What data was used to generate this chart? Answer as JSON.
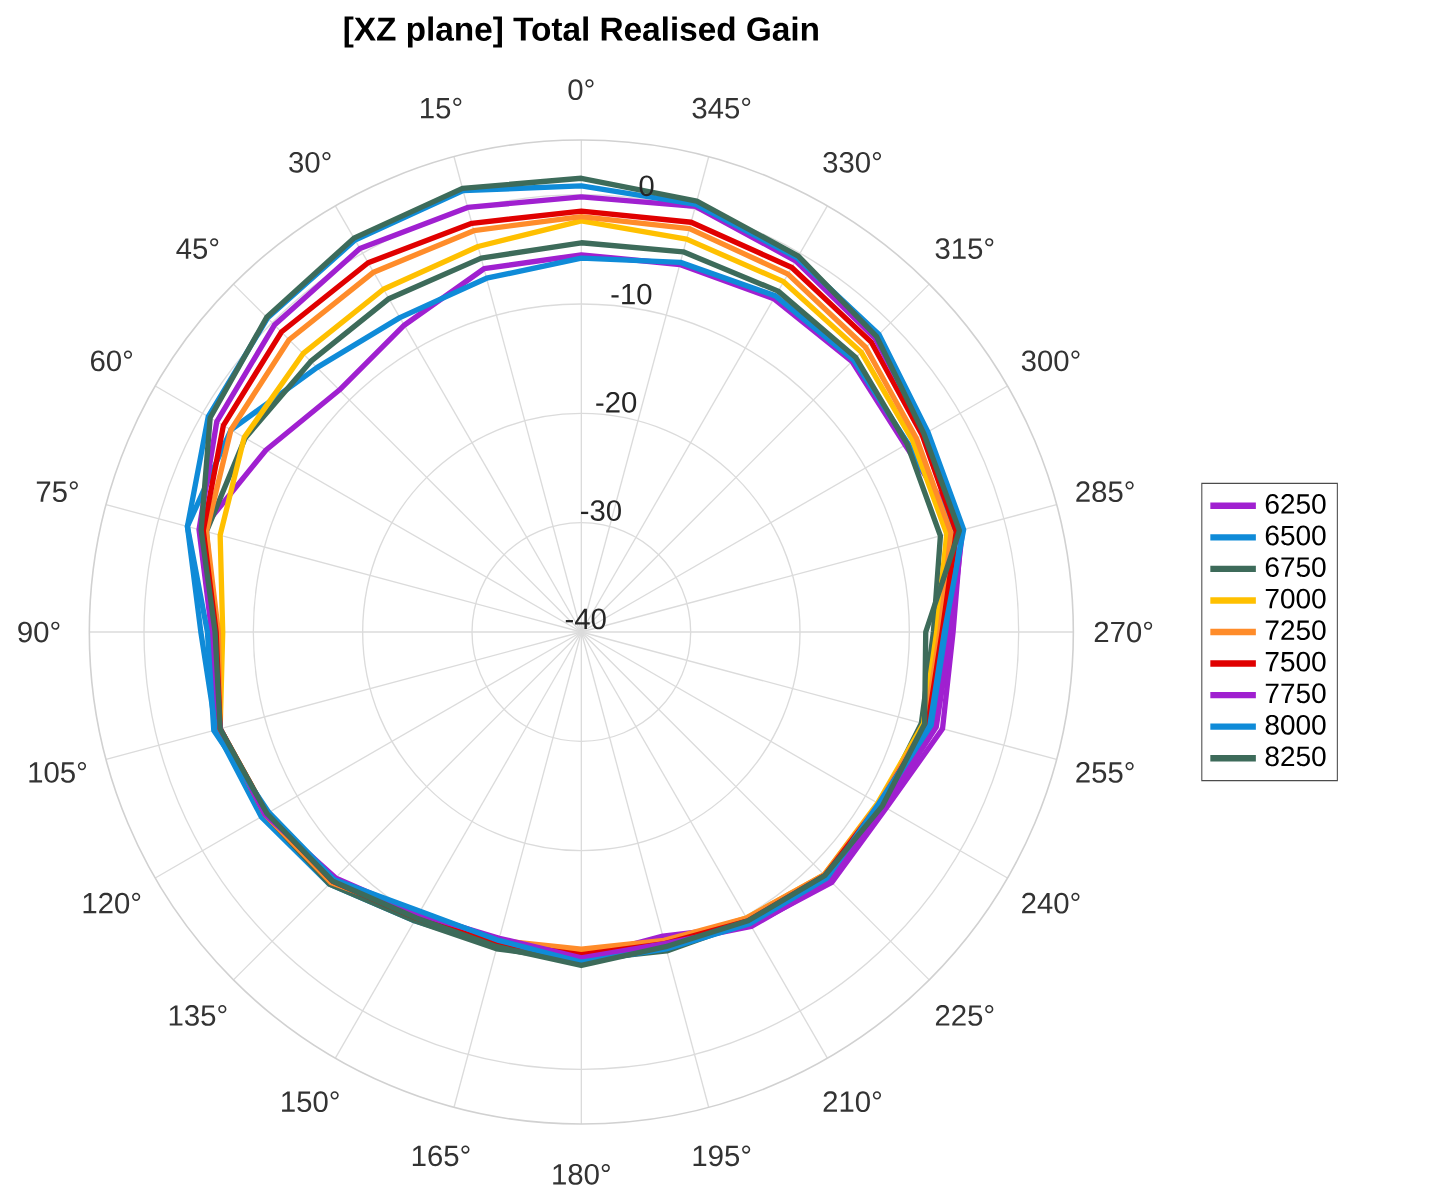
{
  "chart_data": {
    "type": "radar",
    "title": "[XZ plane] Total Realised Gain",
    "categories": [
      "0°",
      "345°",
      "330°",
      "315°",
      "300°",
      "285°",
      "270°",
      "255°",
      "240°",
      "225°",
      "210°",
      "195°",
      "180°",
      "165°",
      "150°",
      "135°",
      "120°",
      "105°",
      "90°",
      "75°",
      "60°",
      "45°",
      "30°",
      "15°"
    ],
    "ylim": [
      -40,
      5
    ],
    "yticks": [
      -40,
      -30,
      -20,
      -10,
      0
    ],
    "grid": true,
    "legend": "right",
    "line_style": "solid",
    "marker": "none",
    "series": [
      {
        "name": "6250",
        "color": "#a020d0",
        "values": [
          -5.5,
          -5.2,
          -4.8,
          -5.0,
          -5.8,
          -4.0,
          -6.0,
          -5.8,
          -7.8,
          -7.6,
          -9.0,
          -11.2,
          -10.2,
          -10.4,
          -9.8,
          -7.6,
          -6.4,
          -5.6,
          -6.2,
          -4.0,
          -6.7,
          -8.7,
          -7.6,
          -5.6
        ]
      },
      {
        "name": "6500",
        "color": "#0f8bd8",
        "values": [
          -5.8,
          -5.0,
          -4.5,
          -4.8,
          -5.5,
          -4.5,
          -6.5,
          -6.8,
          -8.3,
          -8.3,
          -9.6,
          -10.2,
          -10.0,
          -10.2,
          -9.5,
          -7.4,
          -6.2,
          -5.4,
          -5.2,
          -2.7,
          -3.0,
          -5.8,
          -6.8,
          -6.5
        ]
      },
      {
        "name": "6750",
        "color": "#3d6b5a",
        "values": [
          -4.4,
          -4.0,
          -4.0,
          -4.5,
          -5.6,
          -6.0,
          -7.8,
          -7.8,
          -8.4,
          -8.4,
          -9.4,
          -9.8,
          -10.0,
          -10.0,
          -9.5,
          -7.4,
          -6.6,
          -5.8,
          -6.5,
          -4.5,
          -4.5,
          -5.0,
          -4.8,
          -4.6
        ]
      },
      {
        "name": "7000",
        "color": "#ffc000",
        "values": [
          -2.4,
          -2.8,
          -3.0,
          -3.8,
          -5.0,
          -5.4,
          -7.5,
          -7.6,
          -8.7,
          -8.6,
          -9.8,
          -10.5,
          -10.8,
          -10.8,
          -10.4,
          -7.8,
          -6.8,
          -5.8,
          -7.2,
          -5.8,
          -4.4,
          -4.0,
          -3.8,
          -3.5
        ]
      },
      {
        "name": "7250",
        "color": "#ff8c2a",
        "values": [
          -2.0,
          -1.8,
          -2.2,
          -3.2,
          -4.6,
          -5.0,
          -7.2,
          -7.4,
          -8.6,
          -8.6,
          -9.8,
          -10.8,
          -11.0,
          -10.8,
          -10.2,
          -7.6,
          -6.6,
          -5.8,
          -6.8,
          -4.5,
          -3.0,
          -2.2,
          -2.0,
          -2.0
        ]
      },
      {
        "name": "7500",
        "color": "#e00000",
        "values": [
          -1.5,
          -1.2,
          -1.5,
          -2.5,
          -4.0,
          -4.5,
          -7.0,
          -7.2,
          -8.5,
          -8.5,
          -9.5,
          -10.5,
          -10.5,
          -10.5,
          -9.8,
          -7.8,
          -6.8,
          -5.8,
          -6.6,
          -4.2,
          -2.2,
          -1.2,
          -1.0,
          -1.3
        ]
      },
      {
        "name": "7750",
        "color": "#a020d0",
        "values": [
          -0.2,
          0.3,
          -0.8,
          -2.0,
          -3.6,
          -3.9,
          -6.2,
          -6.4,
          -8.0,
          -7.8,
          -8.9,
          -10.5,
          -10.2,
          -11.0,
          -10.2,
          -8.2,
          -6.6,
          -5.8,
          -6.2,
          -3.8,
          -1.5,
          -0.3,
          0.5,
          0.2
        ]
      },
      {
        "name": "8000",
        "color": "#0f8bd8",
        "values": [
          0.8,
          0.5,
          -0.5,
          -1.5,
          -3.4,
          -3.8,
          -6.8,
          -7.0,
          -8.6,
          -8.2,
          -9.2,
          -10.0,
          -9.8,
          -10.8,
          -10.5,
          -8.0,
          -7.0,
          -5.2,
          -5.8,
          -2.7,
          -0.6,
          0.6,
          1.4,
          1.8
        ]
      },
      {
        "name": "8250",
        "color": "#3d6b5a",
        "values": [
          1.5,
          0.8,
          -0.3,
          -1.8,
          -3.8,
          -4.2,
          -8.5,
          -7.5,
          -8.2,
          -8.5,
          -9.5,
          -10.2,
          -9.5,
          -10.2,
          -9.8,
          -7.8,
          -6.8,
          -5.8,
          -6.5,
          -4.0,
          -0.8,
          0.7,
          1.6,
          2.0
        ]
      }
    ]
  }
}
